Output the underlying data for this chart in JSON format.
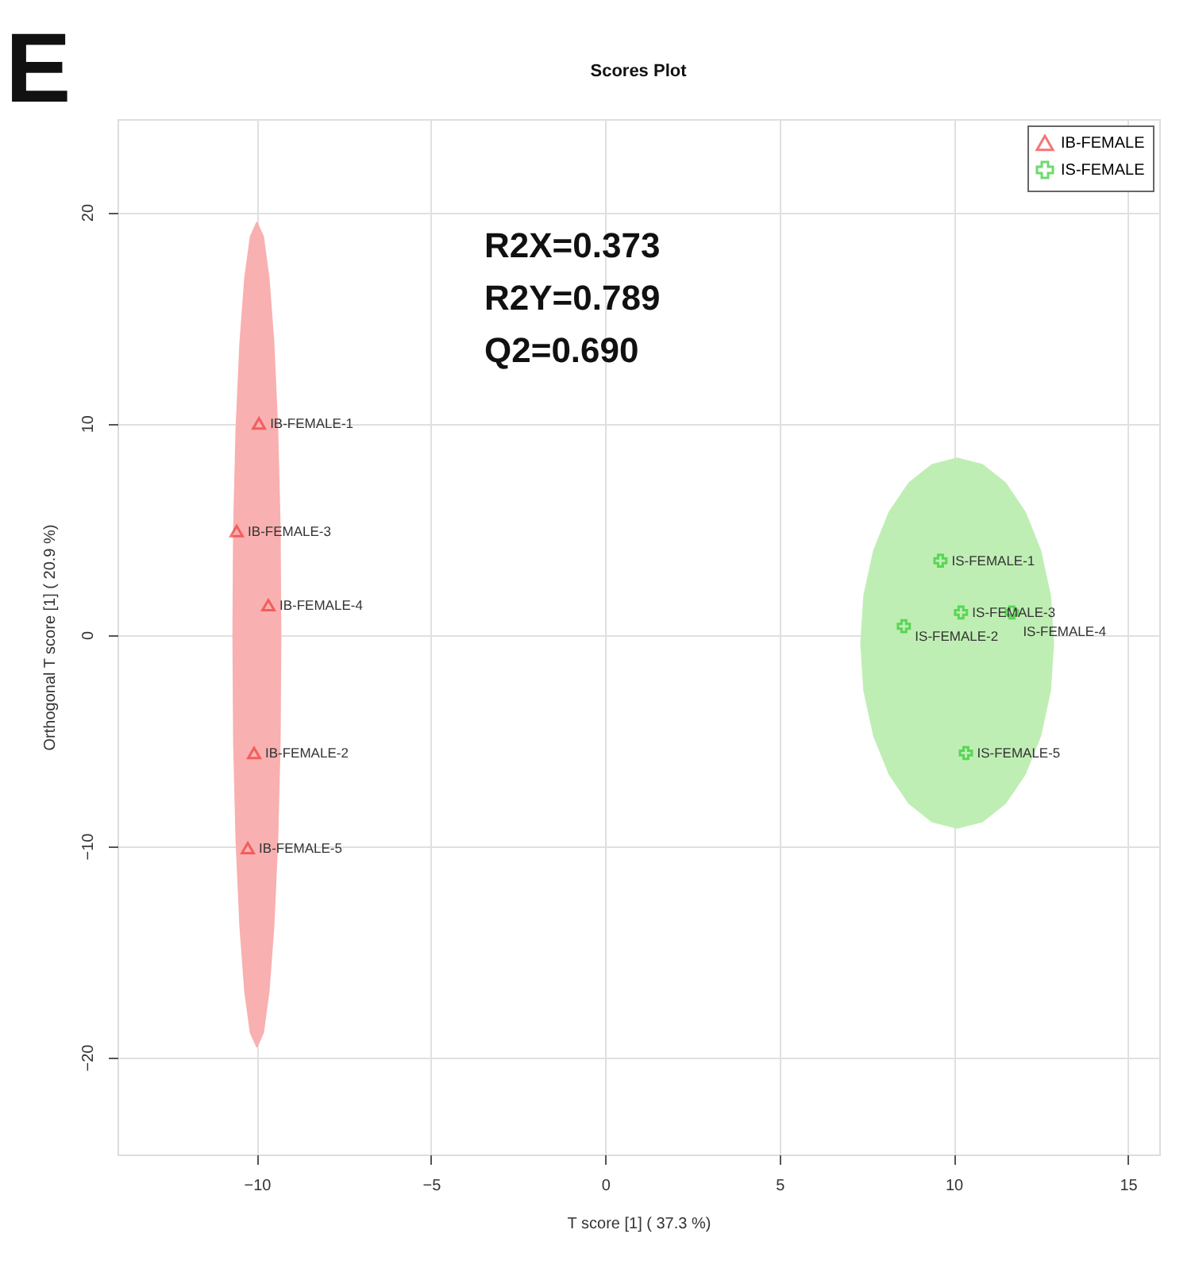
{
  "chart_data": {
    "type": "scatter",
    "title": "Scores Plot",
    "xlabel": "T score [1] ( 37.3 %)",
    "ylabel": "Orthogonal T score [1] ( 20.9 %)",
    "xlim": [
      -14,
      15.9
    ],
    "ylim": [
      -24.6,
      24.4
    ],
    "xticks": [
      -10,
      -5,
      0,
      5,
      10,
      15
    ],
    "yticks": [
      -20,
      -10,
      0,
      10,
      20
    ],
    "grid": true,
    "legend": "top right",
    "annotations": [
      "E",
      "R2X=0.373",
      "R2Y=0.789",
      "Q2=0.690"
    ],
    "series": [
      {
        "type": "area",
        "color": "#f9b0b0",
        "x": [
          -9.32,
          -9.34,
          -9.41,
          -9.52,
          -9.66,
          -9.82,
          -10,
          -10.18,
          -10.34,
          -10.48,
          -10.59,
          -10.66,
          -10.68,
          -10.66,
          -10.59,
          -10.48,
          -10.34,
          -10.18,
          -10,
          -9.82,
          -9.66,
          -9.52,
          -9.41,
          -9.34,
          -9.32
        ],
        "values": [
          0,
          5.05,
          9.75,
          13.79,
          16.89,
          18.84,
          19.5,
          18.84,
          16.89,
          13.79,
          9.75,
          5.05,
          0,
          -5.05,
          -9.75,
          -13.79,
          -16.89,
          -18.84,
          -19.5,
          -18.84,
          -16.89,
          -13.79,
          -9.75,
          -5.05,
          0
        ]
      },
      {
        "type": "area",
        "color": "#bfeeb4",
        "x": [
          12.86,
          12.77,
          12.49,
          12.05,
          11.48,
          10.81,
          10.1,
          9.39,
          8.72,
          8.15,
          7.71,
          7.43,
          7.34,
          7.43,
          7.71,
          8.15,
          8.72,
          9.39,
          10.1,
          10.81,
          11.48,
          12.05,
          12.49,
          12.77,
          12.86
        ],
        "values": [
          -0.4,
          1.86,
          3.98,
          5.79,
          7.18,
          8.05,
          8.35,
          8.05,
          7.18,
          5.79,
          3.98,
          1.86,
          -0.4,
          -2.66,
          -4.78,
          -6.59,
          -7.98,
          -8.85,
          -9.15,
          -8.85,
          -7.98,
          -6.59,
          -4.78,
          -2.66,
          -0.4
        ]
      },
      {
        "name": "IB-FEMALE",
        "color": "#f03c3c",
        "marker": "triangle",
        "x": [
          -9.94,
          -10.58,
          -9.67,
          -10.08,
          -10.26
        ],
        "values": [
          10.0,
          4.9,
          1.4,
          -5.6,
          -10.1
        ],
        "value_labels": [
          "IB-FEMALE-1",
          "IB-FEMALE-3",
          "IB-FEMALE-4",
          "IB-FEMALE-2",
          "IB-FEMALE-5"
        ]
      },
      {
        "name": "IS-FEMALE",
        "color": "#2ecc2e",
        "marker": "cross",
        "x": [
          9.62,
          10.21,
          11.67,
          8.57,
          10.35
        ],
        "values": [
          3.5,
          1.05,
          1.05,
          0.4,
          -5.6
        ],
        "value_labels": [
          "IS-FEMALE-1",
          "IS-FEMALE-3",
          "IS-FEMALE-4",
          "IS-FEMALE-2",
          "IS-FEMALE-5"
        ]
      }
    ]
  }
}
